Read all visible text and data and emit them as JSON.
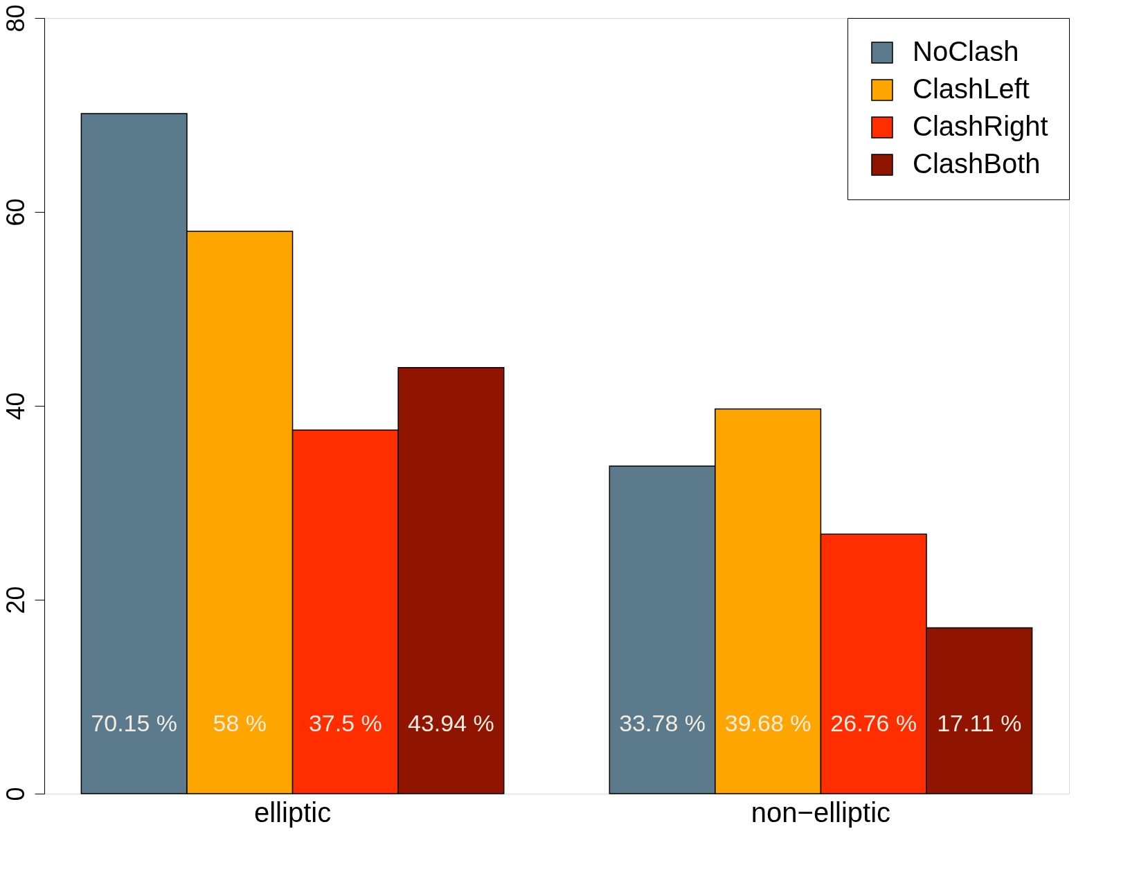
{
  "chart_data": {
    "type": "bar",
    "categories": [
      "elliptic",
      "non−elliptic"
    ],
    "series": [
      {
        "name": "NoClash",
        "color": "#5b7b8c",
        "values": [
          70.15,
          33.78
        ],
        "value_labels": [
          "70.15 %",
          "33.78 %"
        ]
      },
      {
        "name": "ClashLeft",
        "color": "#ffa500",
        "values": [
          58,
          39.68
        ],
        "value_labels": [
          "58 %",
          "39.68 %"
        ]
      },
      {
        "name": "ClashRight",
        "color": "#ff2e00",
        "values": [
          37.5,
          26.76
        ],
        "value_labels": [
          "37.5 %",
          "26.76 %"
        ]
      },
      {
        "name": "ClashBoth",
        "color": "#8f1500",
        "values": [
          43.94,
          17.11
        ],
        "value_labels": [
          "43.94 %",
          "17.11 %"
        ]
      }
    ],
    "ylim": [
      0,
      80
    ],
    "yticks": [
      0,
      20,
      40,
      60,
      80
    ],
    "grid": false,
    "legend": "top right"
  }
}
